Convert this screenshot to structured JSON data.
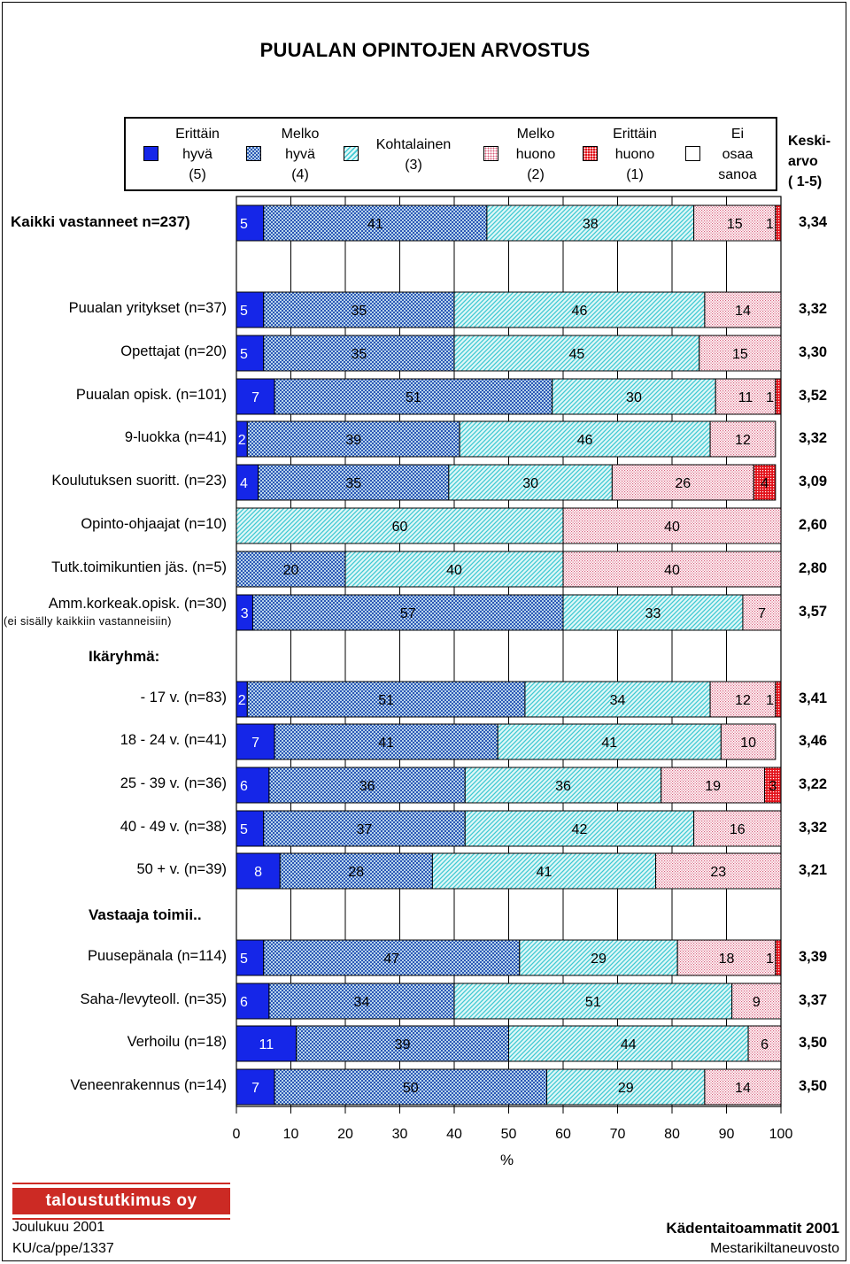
{
  "title": "PUUALAN OPINTOJEN  ARVOSTUS",
  "legend": [
    {
      "label": "Erittäin\nhyvä\n(5)",
      "style": "solid-blue"
    },
    {
      "label": "Melko\nhyvä\n(4)",
      "style": "checker-blue"
    },
    {
      "label": "Kohtalainen\n(3)",
      "style": "diag-cyan"
    },
    {
      "label": "Melko\nhuono\n(2)",
      "style": "dots-pink"
    },
    {
      "label": "Erittäin\nhuono\n(1)",
      "style": "dots-red"
    },
    {
      "label": "Ei\nosaa\nsanoa",
      "style": "white"
    }
  ],
  "mean_header": "Keski-\narvo\n( 1-5)",
  "sections": {
    "age": "Ikäryhmä:",
    "works": "Vastaaja toimii.."
  },
  "colors": {
    "blue": "#1526e8",
    "checker_bg": "#b7d3ea",
    "cyan": "#3ec9d3",
    "cyan_bg": "#dff7f7",
    "pink": "#d95c7a",
    "red": "#e3131b",
    "logo": "#cc2a24"
  },
  "chart_data": {
    "type": "stacked-bar-horizontal",
    "xlabel": "%",
    "xlim": [
      0,
      100
    ],
    "xticks": [
      "0",
      "10",
      "20",
      "30",
      "40",
      "50",
      "60",
      "70",
      "80",
      "90",
      "100"
    ],
    "series_names": [
      "Erittäin hyvä (5)",
      "Melko hyvä (4)",
      "Kohtalainen (3)",
      "Melko huono (2)",
      "Erittäin huono (1)"
    ],
    "rows": [
      {
        "label": "Kaikki vastanneet n=237)",
        "values": [
          5,
          41,
          38,
          15,
          1
        ],
        "labels": [
          "5",
          "41",
          "38",
          "15",
          "1"
        ],
        "mean": "3,34",
        "main": true
      },
      {
        "label": "Puualan yritykset (n=37)",
        "values": [
          5,
          35,
          46,
          14,
          0
        ],
        "labels": [
          "5",
          "35",
          "46",
          "14",
          ""
        ],
        "mean": "3,32"
      },
      {
        "label": "Opettajat (n=20)",
        "values": [
          5,
          35,
          45,
          15,
          0
        ],
        "labels": [
          "5",
          "35",
          "45",
          "15",
          ""
        ],
        "mean": "3,30"
      },
      {
        "label": "Puualan opisk. (n=101)",
        "values": [
          7,
          51,
          30,
          11,
          1
        ],
        "labels": [
          "7",
          "51",
          "30",
          "11",
          "1"
        ],
        "mean": "3,52"
      },
      {
        "label": "9-luokka (n=41)",
        "values": [
          2,
          39,
          46,
          12,
          0
        ],
        "labels": [
          "2",
          "39",
          "46",
          "12",
          ""
        ],
        "mean": "3,32"
      },
      {
        "label": "Koulutuksen suoritt. (n=23)",
        "values": [
          4,
          35,
          30,
          26,
          4
        ],
        "labels": [
          "4",
          "35",
          "30",
          "26",
          "4"
        ],
        "mean": "3,09"
      },
      {
        "label": "Opinto-ohjaajat (n=10)",
        "values": [
          0,
          0,
          60,
          40,
          0
        ],
        "labels": [
          "",
          "",
          "60",
          "40",
          ""
        ],
        "mean": "2,60"
      },
      {
        "label": "Tutk.toimikuntien jäs. (n=5)",
        "values": [
          0,
          20,
          40,
          40,
          0
        ],
        "labels": [
          "",
          "20",
          "40",
          "40",
          ""
        ],
        "mean": "2,80"
      },
      {
        "label": "Amm.korkeak.opisk. (n=30)",
        "sublabel": "(ei sisälly kaikkiin vastanneisiin)",
        "values": [
          3,
          57,
          33,
          7,
          0
        ],
        "labels": [
          "3",
          "57",
          "33",
          "7",
          ""
        ],
        "mean": "3,57"
      },
      {
        "label": "- 17 v.  (n=83)",
        "values": [
          2,
          51,
          34,
          12,
          1
        ],
        "labels": [
          "2",
          "51",
          "34",
          "12",
          "1"
        ],
        "mean": "3,41"
      },
      {
        "label": "18 - 24 v. (n=41)",
        "values": [
          7,
          41,
          41,
          10,
          0
        ],
        "labels": [
          "7",
          "41",
          "41",
          "10",
          ""
        ],
        "mean": "3,46"
      },
      {
        "label": "25 - 39 v. (n=36)",
        "values": [
          6,
          36,
          36,
          19,
          3
        ],
        "labels": [
          "6",
          "36",
          "36",
          "19",
          "3"
        ],
        "mean": "3,22"
      },
      {
        "label": "40 - 49 v. (n=38)",
        "values": [
          5,
          37,
          42,
          16,
          0
        ],
        "labels": [
          "5",
          "37",
          "42",
          "16",
          ""
        ],
        "mean": "3,32"
      },
      {
        "label": "50 + v.  (n=39)",
        "values": [
          8,
          28,
          41,
          23,
          0
        ],
        "labels": [
          "8",
          "28",
          "41",
          "23",
          ""
        ],
        "mean": "3,21"
      },
      {
        "label": "Puusepänala (n=114)",
        "values": [
          5,
          47,
          29,
          18,
          1
        ],
        "labels": [
          "5",
          "47",
          "29",
          "18",
          "1"
        ],
        "mean": "3,39"
      },
      {
        "label": "Saha-/levyteoll. (n=35)",
        "values": [
          6,
          34,
          51,
          9,
          0
        ],
        "labels": [
          "6",
          "34",
          "51",
          "9",
          ""
        ],
        "mean": "3,37"
      },
      {
        "label": "Verhoilu (n=18)",
        "values": [
          11,
          39,
          44,
          6,
          0
        ],
        "labels": [
          "11",
          "39",
          "44",
          "6",
          ""
        ],
        "mean": "3,50"
      },
      {
        "label": "Veneenrakennus (n=14)",
        "values": [
          7,
          50,
          29,
          14,
          0
        ],
        "labels": [
          "7",
          "50",
          "29",
          "14",
          ""
        ],
        "mean": "3,50"
      }
    ]
  },
  "footer": {
    "logo": "taloustutkimus oy",
    "date": "Joulukuu 2001",
    "code": "KU/ca/ppe/1337",
    "project": "Kädentaitoammatit 2001",
    "client": "Mestarikiltaneuvosto"
  }
}
